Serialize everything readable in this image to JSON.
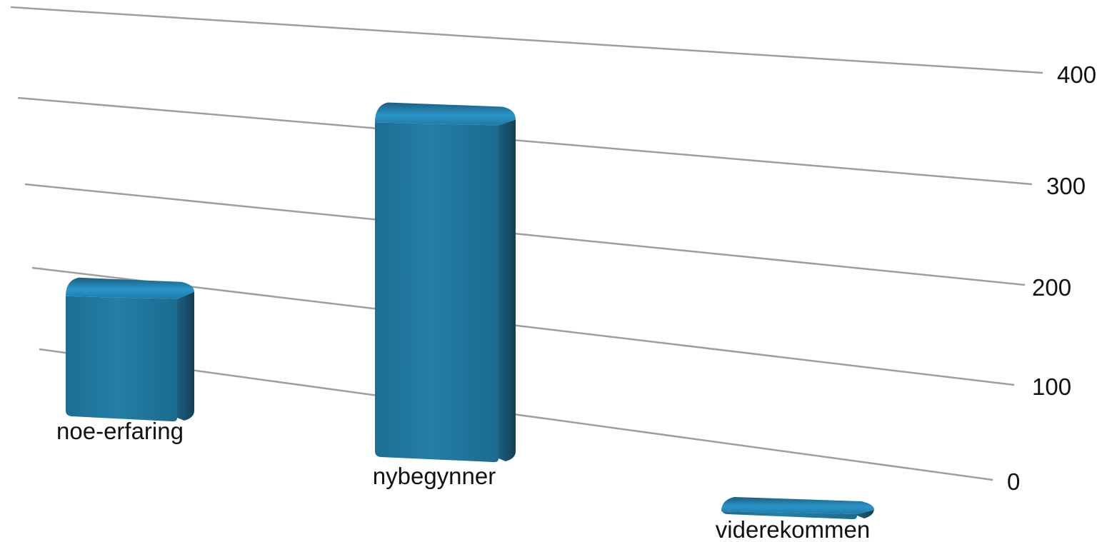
{
  "chart_data": {
    "type": "bar",
    "categories": [
      "noe-erfaring",
      "nybegynner",
      "viderekommen"
    ],
    "values": [
      140,
      375,
      25
    ],
    "yticks": [
      0,
      100,
      200,
      300,
      400
    ],
    "ylim": [
      0,
      440
    ],
    "grid": true,
    "legend": "none",
    "colors": {
      "bar_front": "#22779e",
      "bar_top": "#1f7aa8",
      "bar_side": "#174f69",
      "grid": "#9e9e9e",
      "text": "#111111"
    }
  }
}
